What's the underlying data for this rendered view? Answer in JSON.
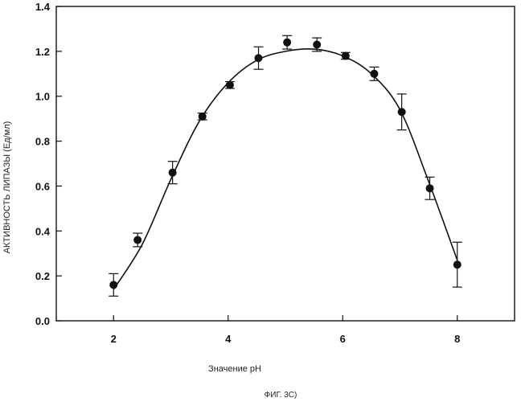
{
  "chart_data": {
    "type": "scatter",
    "xlabel": "Значение pH",
    "ylabel": "АКТИВНОСТЬ ЛИПАЗЫ (Ед/мл)",
    "caption": "ФИГ. 3С)",
    "xlim": [
      1,
      9
    ],
    "ylim": [
      0,
      1.4
    ],
    "x_ticks": [
      2,
      4,
      6,
      8
    ],
    "y_ticks": [
      0.0,
      0.2,
      0.4,
      0.6,
      0.8,
      1.0,
      1.2,
      1.4
    ],
    "x_tick_labels": [
      "2",
      "4",
      "6",
      "8"
    ],
    "y_tick_labels": [
      "0.0",
      "0.2",
      "0.4",
      "0.6",
      "0.8",
      "1.0",
      "1.2",
      "1.4"
    ],
    "grid": false,
    "series": [
      {
        "points": [
          {
            "x": 2.0,
            "y": 0.16,
            "err": 0.05
          },
          {
            "x": 2.42,
            "y": 0.36,
            "err": 0.03
          },
          {
            "x": 3.03,
            "y": 0.66,
            "err": 0.05
          },
          {
            "x": 3.55,
            "y": 0.91,
            "err": 0.015
          },
          {
            "x": 4.03,
            "y": 1.05,
            "err": 0.015
          },
          {
            "x": 4.53,
            "y": 1.17,
            "err": 0.05
          },
          {
            "x": 5.03,
            "y": 1.24,
            "err": 0.03
          },
          {
            "x": 5.55,
            "y": 1.23,
            "err": 0.03
          },
          {
            "x": 6.05,
            "y": 1.18,
            "err": 0.015
          },
          {
            "x": 6.55,
            "y": 1.1,
            "err": 0.03
          },
          {
            "x": 7.03,
            "y": 0.93,
            "err": 0.08
          },
          {
            "x": 7.52,
            "y": 0.59,
            "err": 0.05
          },
          {
            "x": 8.0,
            "y": 0.25,
            "err": 0.1
          }
        ]
      }
    ],
    "fit_curve": [
      [
        2.0,
        0.14
      ],
      [
        2.5,
        0.34
      ],
      [
        3.0,
        0.63
      ],
      [
        3.5,
        0.89
      ],
      [
        4.0,
        1.06
      ],
      [
        4.5,
        1.16
      ],
      [
        5.0,
        1.2
      ],
      [
        5.5,
        1.21
      ],
      [
        6.0,
        1.18
      ],
      [
        6.5,
        1.1
      ],
      [
        7.0,
        0.94
      ],
      [
        7.5,
        0.62
      ],
      [
        8.0,
        0.27
      ]
    ]
  }
}
